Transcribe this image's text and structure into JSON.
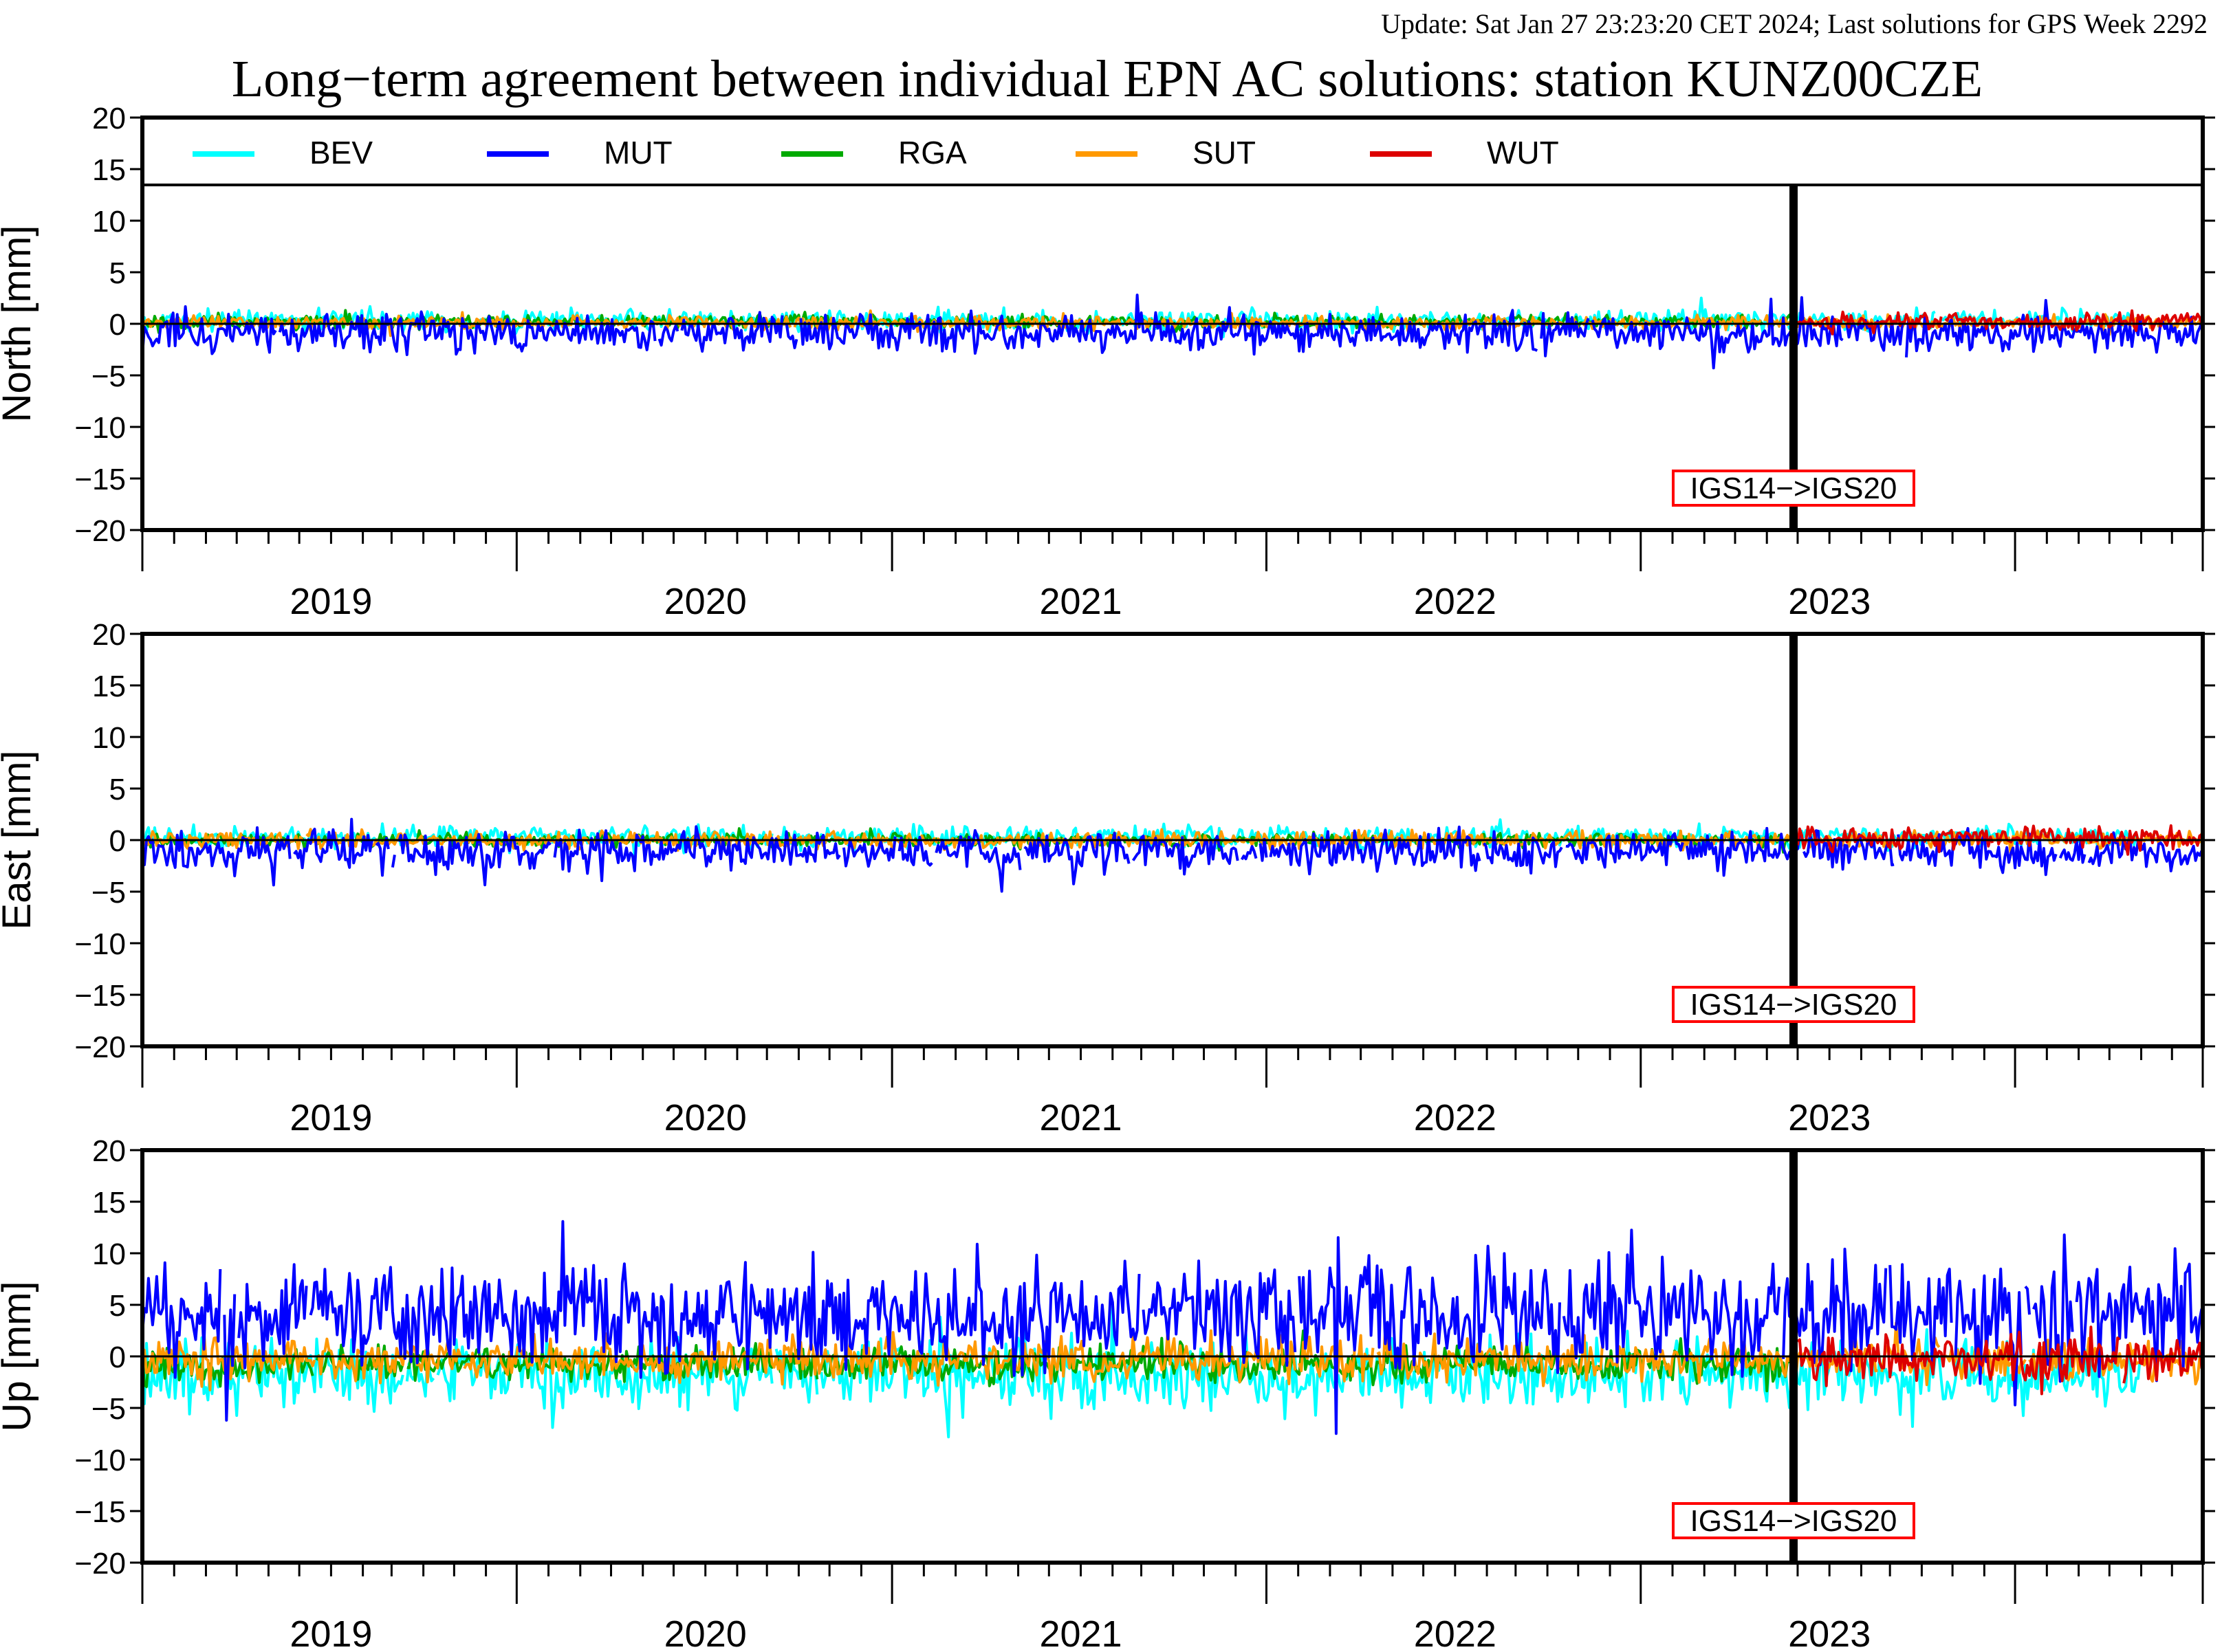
{
  "header": {
    "update_text": "Update: Sat Jan 27 23:23:20 CET 2024; Last solutions for GPS Week 2292",
    "title": "Long−term agreement between individual EPN AC solutions: station KUNZ00CZE"
  },
  "colors": {
    "BEV": "#00ffff",
    "MUT": "#0000ff",
    "RGA": "#00aa00",
    "SUT": "#ff9900",
    "WUT": "#dd0000",
    "update_text": "#8b0000",
    "annotation_box": "#ff0000"
  },
  "chart_data": [
    {
      "type": "line",
      "ylabel": "North [mm]",
      "ylim": [
        -20,
        20
      ],
      "xlim": [
        "2018-07-01",
        "2023-12-31"
      ],
      "yticks": [
        "20",
        "15",
        "10",
        "5",
        "0",
        "−5",
        "−10",
        "−15",
        "−20"
      ],
      "xtick_labels": [
        "2019",
        "2020",
        "2021",
        "2022",
        "2023"
      ],
      "legend": {
        "position": "top",
        "entries": [
          "BEV",
          "MUT",
          "RGA",
          "SUT",
          "WUT"
        ]
      },
      "annotation": {
        "text": "IGS14−>IGS20",
        "x": "2022-11-27"
      },
      "series": [
        {
          "name": "BEV",
          "start": "2018-07-01",
          "end": "2023-10-31",
          "mean": 0.3,
          "noise": 0.5
        },
        {
          "name": "MUT",
          "start": "2018-07-01",
          "end": "2023-12-31",
          "mean": -0.9,
          "noise": 0.9
        },
        {
          "name": "RGA",
          "start": "2018-07-01",
          "end": "2022-11-26",
          "mean": 0.2,
          "noise": 0.3
        },
        {
          "name": "SUT",
          "start": "2018-07-01",
          "end": "2023-12-31",
          "mean": 0.1,
          "noise": 0.3
        },
        {
          "name": "WUT",
          "start": "2022-12-01",
          "end": "2023-12-31",
          "mean": 0.2,
          "noise": 0.4
        }
      ]
    },
    {
      "type": "line",
      "ylabel": "East [mm]",
      "ylim": [
        -20,
        20
      ],
      "xlim": [
        "2018-07-01",
        "2023-12-31"
      ],
      "yticks": [
        "20",
        "15",
        "10",
        "5",
        "0",
        "−5",
        "−10",
        "−15",
        "−20"
      ],
      "xtick_labels": [
        "2019",
        "2020",
        "2021",
        "2022",
        "2023"
      ],
      "annotation": {
        "text": "IGS14−>IGS20",
        "x": "2022-11-27"
      },
      "series": [
        {
          "name": "BEV",
          "start": "2018-07-01",
          "end": "2023-10-31",
          "mean": 0.3,
          "noise": 0.5
        },
        {
          "name": "MUT",
          "start": "2018-07-01",
          "end": "2023-12-31",
          "mean": -1.0,
          "noise": 0.9
        },
        {
          "name": "RGA",
          "start": "2018-07-01",
          "end": "2022-11-26",
          "mean": 0.0,
          "noise": 0.3
        },
        {
          "name": "SUT",
          "start": "2018-07-01",
          "end": "2023-12-31",
          "mean": 0.0,
          "noise": 0.4
        },
        {
          "name": "WUT",
          "start": "2022-12-01",
          "end": "2023-12-31",
          "mean": 0.2,
          "noise": 0.5
        }
      ]
    },
    {
      "type": "line",
      "ylabel": "Up [mm]",
      "ylim": [
        -20,
        20
      ],
      "xlim": [
        "2018-07-01",
        "2023-12-31"
      ],
      "yticks": [
        "20",
        "15",
        "10",
        "5",
        "0",
        "−5",
        "−10",
        "−15",
        "−20"
      ],
      "xtick_labels": [
        "2019",
        "2020",
        "2021",
        "2022",
        "2023"
      ],
      "annotation": {
        "text": "IGS14−>IGS20",
        "x": "2022-11-27"
      },
      "series": [
        {
          "name": "BEV",
          "start": "2018-07-01",
          "end": "2023-10-31",
          "mean": -1.8,
          "noise": 1.6
        },
        {
          "name": "MUT",
          "start": "2018-07-01",
          "end": "2023-12-31",
          "mean": 4.0,
          "noise": 2.6
        },
        {
          "name": "RGA",
          "start": "2018-07-01",
          "end": "2022-11-26",
          "mean": -0.8,
          "noise": 0.8
        },
        {
          "name": "SUT",
          "start": "2018-07-01",
          "end": "2023-12-31",
          "mean": -0.3,
          "noise": 1.0
        },
        {
          "name": "WUT",
          "start": "2022-12-01",
          "end": "2023-12-31",
          "mean": -0.3,
          "noise": 1.2
        }
      ]
    }
  ]
}
